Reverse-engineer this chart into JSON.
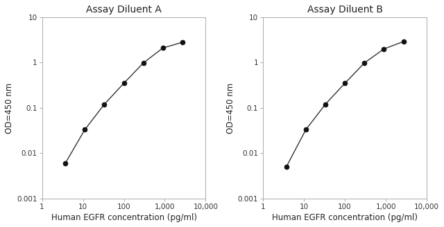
{
  "chart_A": {
    "title": "Assay Diluent A",
    "x": [
      3.7,
      11.1,
      33.3,
      100,
      300,
      900,
      2700
    ],
    "y": [
      0.006,
      0.033,
      0.12,
      0.35,
      0.98,
      2.1,
      2.8
    ]
  },
  "chart_B": {
    "title": "Assay Diluent B",
    "x": [
      3.7,
      11.1,
      33.3,
      100,
      300,
      900,
      2700
    ],
    "y": [
      0.005,
      0.033,
      0.12,
      0.35,
      0.98,
      2.0,
      2.9
    ]
  },
  "xlabel": "Human EGFR concentration (pg/ml)",
  "ylabel": "OD=450 nm",
  "xlim": [
    1,
    10000
  ],
  "ylim": [
    0.001,
    10
  ],
  "xticks": [
    1,
    10,
    100,
    1000,
    10000
  ],
  "xtick_labels": [
    "1",
    "10",
    "100",
    "1,000",
    "10,000"
  ],
  "yticks": [
    0.001,
    0.01,
    0.1,
    1,
    10
  ],
  "ytick_labels": [
    "0.001",
    "0.01",
    "0.1",
    "1",
    "10"
  ],
  "line_color": "#333333",
  "marker_color": "#111111",
  "marker_size": 5,
  "title_fontsize": 10,
  "label_fontsize": 8.5,
  "tick_fontsize": 7.5,
  "bg_color": "#ffffff",
  "spine_color": "#aaaaaa"
}
